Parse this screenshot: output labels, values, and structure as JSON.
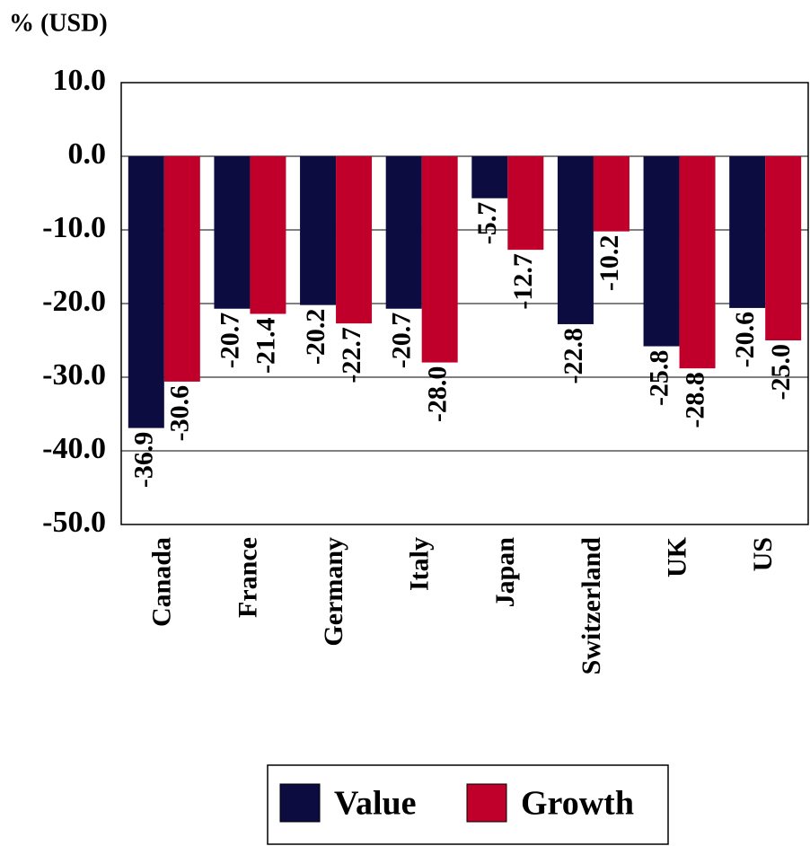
{
  "chart_data": {
    "type": "bar",
    "ylabel": "% (USD)",
    "categories": [
      "Canada",
      "France",
      "Germany",
      "Italy",
      "Japan",
      "Switzerland",
      "UK",
      "US"
    ],
    "series": [
      {
        "name": "Value",
        "color": "#0c0c40",
        "values": [
          -36.9,
          -20.7,
          -20.2,
          -20.7,
          -5.7,
          -22.8,
          -25.8,
          -20.6
        ],
        "value_labels": [
          "-36.9",
          "-20.7",
          "-20.2",
          "-20.7",
          "-5.7",
          "-22.8",
          "-25.8",
          "-20.6"
        ]
      },
      {
        "name": "Growth",
        "color": "#c0002a",
        "values": [
          -30.6,
          -21.4,
          -22.7,
          -28.0,
          -12.7,
          -10.2,
          -28.8,
          -25.0
        ],
        "value_labels": [
          "-30.6",
          "-21.4",
          "-22.7",
          "-28.0",
          "-12.7",
          "-10.2",
          "-28.8",
          "-25.0"
        ]
      }
    ],
    "ylim": [
      -50,
      10
    ],
    "yticks": [
      {
        "value": 10,
        "label": "10.0"
      },
      {
        "value": 0,
        "label": "0.0"
      },
      {
        "value": -10,
        "label": "-10.0"
      },
      {
        "value": -20,
        "label": "-20.0"
      },
      {
        "value": -30,
        "label": "-30.0"
      },
      {
        "value": -40,
        "label": "-40.0"
      },
      {
        "value": -50,
        "label": "-50.0"
      }
    ],
    "grid": true,
    "legend": "bottom"
  }
}
